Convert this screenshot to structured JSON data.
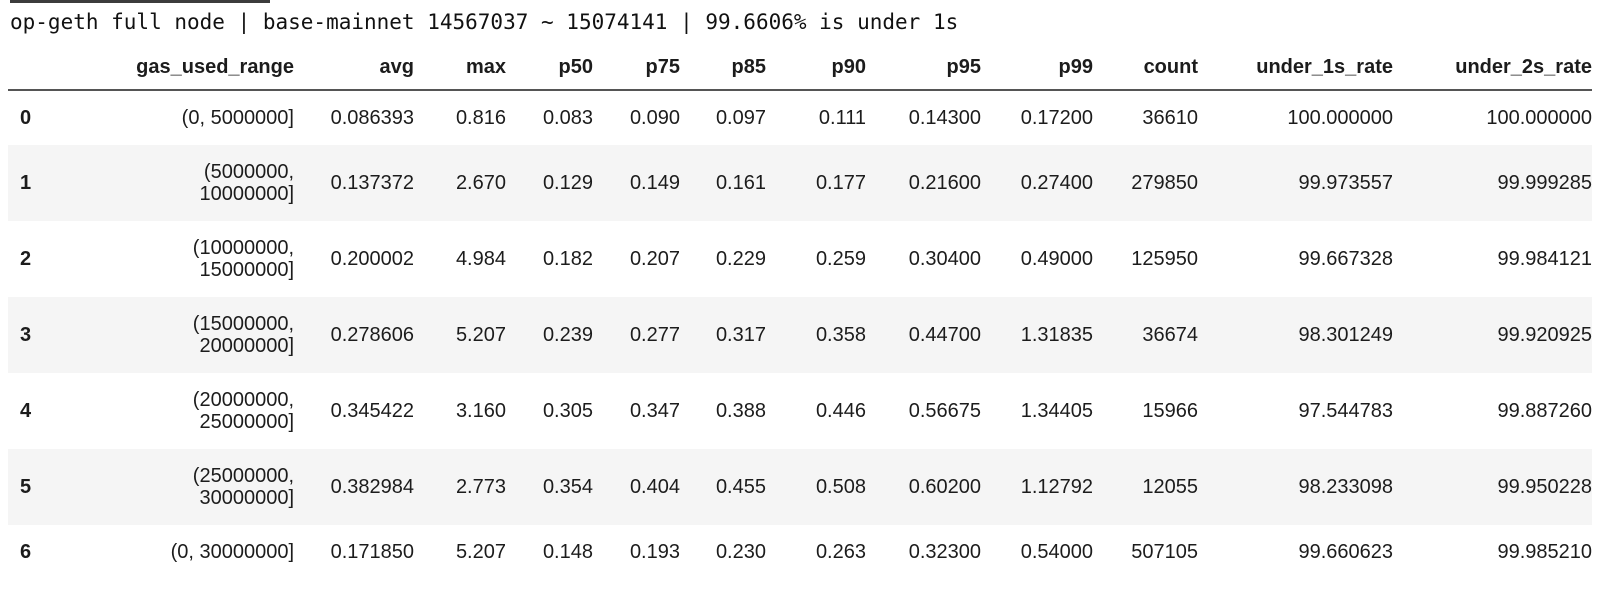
{
  "colors": {
    "background": "#ffffff",
    "row_stripe": "#f5f5f5",
    "text": "#1c1c1c",
    "header_border": "#555555"
  },
  "title": "op-geth full node | base-mainnet 14567037 ~ 15074141 | 99.6606% is under 1s",
  "table": {
    "index_header": "",
    "columns": [
      "gas_used_range",
      "avg",
      "max",
      "p50",
      "p75",
      "p85",
      "p90",
      "p95",
      "p99",
      "count",
      "under_1s_rate",
      "under_2s_rate"
    ],
    "rows": [
      {
        "index": "0",
        "cells": [
          "(0, 5000000]",
          "0.086393",
          "0.816",
          "0.083",
          "0.090",
          "0.097",
          "0.111",
          "0.14300",
          "0.17200",
          "36610",
          "100.000000",
          "100.000000"
        ]
      },
      {
        "index": "1",
        "cells": [
          "(5000000,\n10000000]",
          "0.137372",
          "2.670",
          "0.129",
          "0.149",
          "0.161",
          "0.177",
          "0.21600",
          "0.27400",
          "279850",
          "99.973557",
          "99.999285"
        ]
      },
      {
        "index": "2",
        "cells": [
          "(10000000,\n15000000]",
          "0.200002",
          "4.984",
          "0.182",
          "0.207",
          "0.229",
          "0.259",
          "0.30400",
          "0.49000",
          "125950",
          "99.667328",
          "99.984121"
        ]
      },
      {
        "index": "3",
        "cells": [
          "(15000000,\n20000000]",
          "0.278606",
          "5.207",
          "0.239",
          "0.277",
          "0.317",
          "0.358",
          "0.44700",
          "1.31835",
          "36674",
          "98.301249",
          "99.920925"
        ]
      },
      {
        "index": "4",
        "cells": [
          "(20000000,\n25000000]",
          "0.345422",
          "3.160",
          "0.305",
          "0.347",
          "0.388",
          "0.446",
          "0.56675",
          "1.34405",
          "15966",
          "97.544783",
          "99.887260"
        ]
      },
      {
        "index": "5",
        "cells": [
          "(25000000,\n30000000]",
          "0.382984",
          "2.773",
          "0.354",
          "0.404",
          "0.455",
          "0.508",
          "0.60200",
          "1.12792",
          "12055",
          "98.233098",
          "99.950228"
        ]
      },
      {
        "index": "6",
        "cells": [
          "(0, 30000000]",
          "0.171850",
          "5.207",
          "0.148",
          "0.193",
          "0.230",
          "0.263",
          "0.32300",
          "0.54000",
          "507105",
          "99.660623",
          "99.985210"
        ]
      }
    ]
  }
}
